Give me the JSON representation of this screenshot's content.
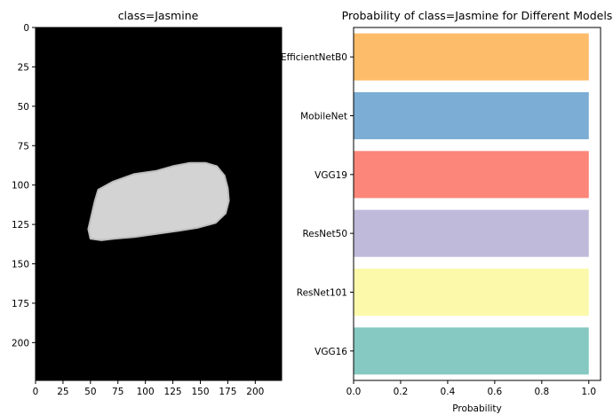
{
  "chart_data": [
    {
      "type": "image",
      "title": "class=Jasmine",
      "xlim": [
        0,
        224
      ],
      "ylim": [
        224,
        0
      ],
      "x_ticks": [
        0,
        25,
        50,
        75,
        100,
        125,
        150,
        175,
        200
      ],
      "y_ticks": [
        0,
        25,
        50,
        75,
        100,
        125,
        150,
        175,
        200
      ],
      "background_color": "#000000",
      "grain_color": "#d3d3d3",
      "grain_outline": [
        [
          57,
          103
        ],
        [
          70,
          98
        ],
        [
          90,
          93
        ],
        [
          110,
          91
        ],
        [
          125,
          88
        ],
        [
          140,
          86
        ],
        [
          155,
          86
        ],
        [
          165,
          88
        ],
        [
          172,
          94
        ],
        [
          175,
          102
        ],
        [
          176,
          110
        ],
        [
          173,
          118
        ],
        [
          164,
          124
        ],
        [
          148,
          127
        ],
        [
          130,
          129
        ],
        [
          110,
          131
        ],
        [
          90,
          133
        ],
        [
          72,
          134
        ],
        [
          60,
          135
        ],
        [
          50,
          134
        ],
        [
          48,
          128
        ],
        [
          51,
          119
        ],
        [
          54,
          110
        ]
      ]
    },
    {
      "type": "bar",
      "orientation": "horizontal",
      "title": "Probability of class=Jasmine for Different Models",
      "categories": [
        "EfficientNetB0",
        "MobileNet",
        "VGG19",
        "ResNet50",
        "ResNet101",
        "VGG16"
      ],
      "values": [
        1.0,
        1.0,
        1.0,
        1.0,
        1.0,
        1.0
      ],
      "colors": [
        "#fdb862",
        "#75a9d2",
        "#fb8072",
        "#bdb6d8",
        "#fcf9a5",
        "#7fc6bf"
      ],
      "xlabel": "Probability",
      "ylabel": "",
      "xlim": [
        0,
        1.05
      ],
      "x_ticks": [
        "0.0",
        "0.2",
        "0.4",
        "0.6",
        "0.8",
        "1.0"
      ],
      "grid": false
    }
  ]
}
